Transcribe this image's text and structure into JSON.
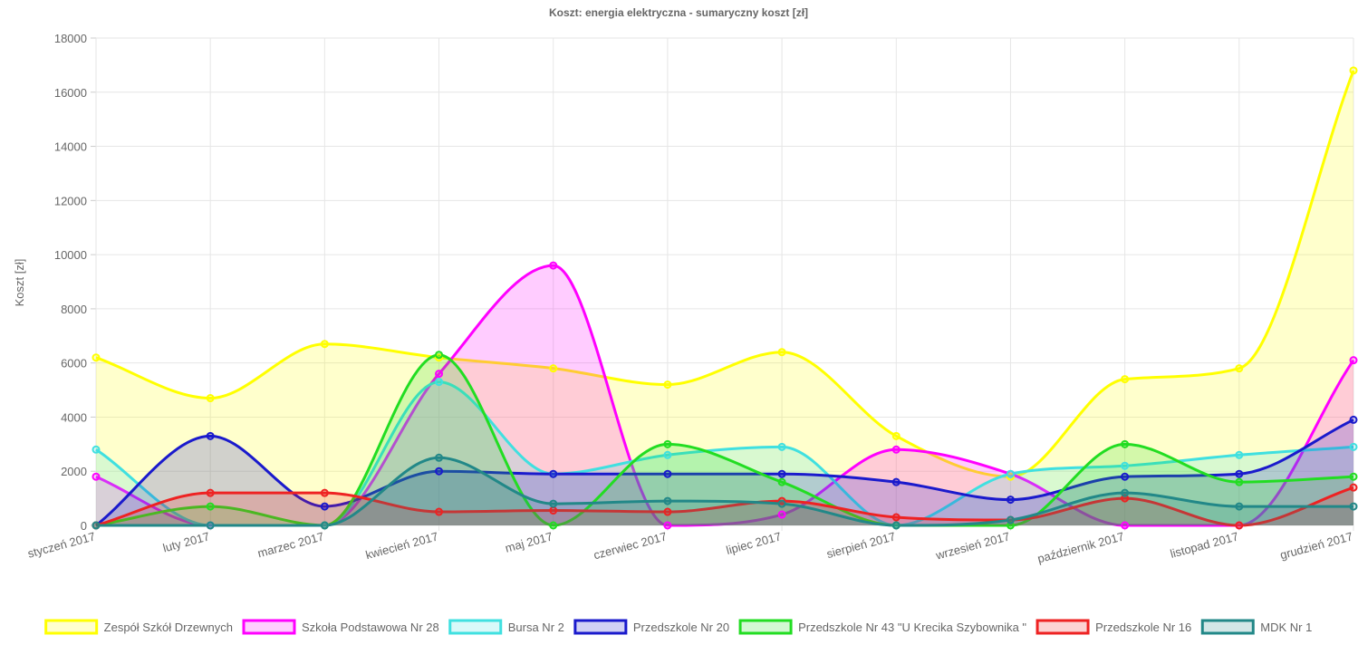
{
  "chart_data": {
    "type": "area",
    "title": "Koszt: energia elektryczna - sumaryczny koszt [zł]",
    "xlabel": "",
    "ylabel": "Koszt [zł]",
    "ylim": [
      0,
      18000
    ],
    "yticks": [
      0,
      2000,
      4000,
      6000,
      8000,
      10000,
      12000,
      14000,
      16000,
      18000
    ],
    "grid": true,
    "legend_position": "bottom",
    "categories": [
      "styczeń 2017",
      "luty 2017",
      "marzec 2017",
      "kwiecień 2017",
      "maj 2017",
      "czerwiec 2017",
      "lipiec 2017",
      "sierpień 2017",
      "wrzesień 2017",
      "październik 2017",
      "listopad 2017",
      "grudzień 2017"
    ],
    "series": [
      {
        "name": "Zespół Szkół Drzewnych",
        "color": "#ffff00",
        "fill": "rgba(255,255,0,0.2)",
        "values": [
          6200,
          4700,
          6700,
          6200,
          5800,
          5200,
          6400,
          3300,
          1800,
          5400,
          5800,
          16800
        ]
      },
      {
        "name": "Szkoła Podstawowa Nr 28",
        "color": "#ff00ff",
        "fill": "rgba(255,0,255,0.2)",
        "values": [
          1800,
          0,
          0,
          5600,
          9600,
          0,
          400,
          2800,
          1900,
          0,
          0,
          6100
        ]
      },
      {
        "name": "Bursa Nr 2",
        "color": "#40e0e0",
        "fill": "rgba(64,224,224,0.2)",
        "values": [
          2800,
          0,
          0,
          5300,
          1900,
          2600,
          2900,
          0,
          1900,
          2200,
          2600,
          2900
        ]
      },
      {
        "name": "Przedszkole Nr 20",
        "color": "#1a1acc",
        "fill": "rgba(26,26,204,0.2)",
        "values": [
          0,
          3300,
          700,
          2000,
          1900,
          1900,
          1900,
          1600,
          950,
          1800,
          1900,
          3900
        ]
      },
      {
        "name": "Przedszkole Nr 43 \"U Krecika Szybownika \"",
        "color": "#22dd22",
        "fill": "rgba(34,221,34,0.2)",
        "values": [
          0,
          700,
          0,
          6300,
          0,
          3000,
          1600,
          0,
          0,
          3000,
          1600,
          1800
        ]
      },
      {
        "name": "Przedszkole Nr 16",
        "color": "#ee2222",
        "fill": "rgba(238,34,34,0.2)",
        "values": [
          0,
          1200,
          1200,
          500,
          550,
          500,
          900,
          300,
          200,
          1000,
          0,
          1400
        ]
      },
      {
        "name": "MDK Nr 1",
        "color": "#228888",
        "fill": "rgba(34,136,136,0.2)",
        "values": [
          0,
          0,
          0,
          2500,
          800,
          900,
          800,
          0,
          200,
          1200,
          700,
          700
        ]
      }
    ]
  }
}
